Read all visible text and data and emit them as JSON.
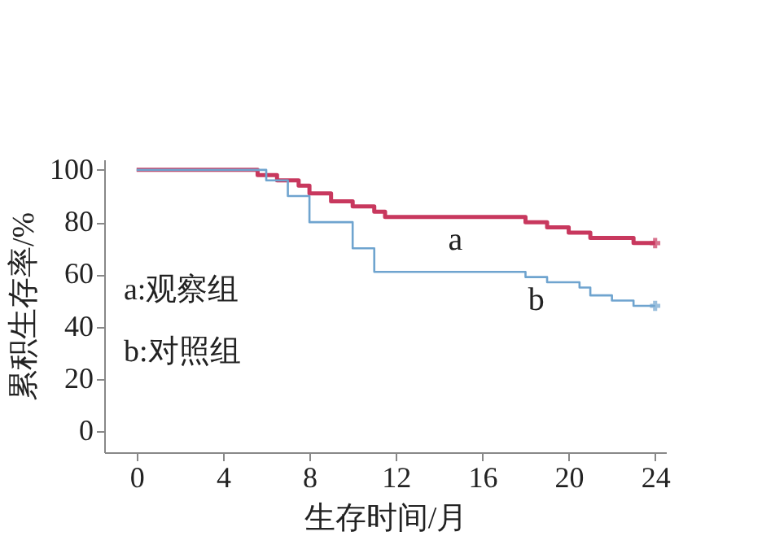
{
  "chart_data": {
    "type": "step",
    "xlabel": "生存时间/月",
    "ylabel": "累积生存率/%",
    "xlim": [
      -1.5,
      24.5
    ],
    "ylim": [
      -8,
      104
    ],
    "xticks": [
      0,
      4,
      8,
      12,
      16,
      20,
      24
    ],
    "yticks": [
      0,
      20,
      40,
      60,
      80,
      100
    ],
    "line_style": "solid",
    "annotations": [
      "a:观察组",
      "b:对照组"
    ],
    "series": [
      {
        "name": "a",
        "color": "#c8385e",
        "x": [
          0,
          5.6,
          6.5,
          7.5,
          8,
          9,
          10,
          11,
          11.5,
          18,
          19,
          20,
          21,
          23,
          24
        ],
        "values": [
          100,
          98,
          96,
          94,
          91,
          88,
          86,
          84,
          82,
          80,
          78,
          76,
          74,
          72,
          72
        ]
      },
      {
        "name": "b",
        "color": "#6fa4cf",
        "x": [
          0,
          6,
          7,
          8,
          10,
          11,
          18,
          19,
          20.5,
          21,
          22,
          23,
          24
        ],
        "values": [
          100,
          96,
          90,
          80,
          70,
          61,
          59,
          57,
          55,
          52,
          50,
          48,
          48
        ]
      }
    ]
  }
}
